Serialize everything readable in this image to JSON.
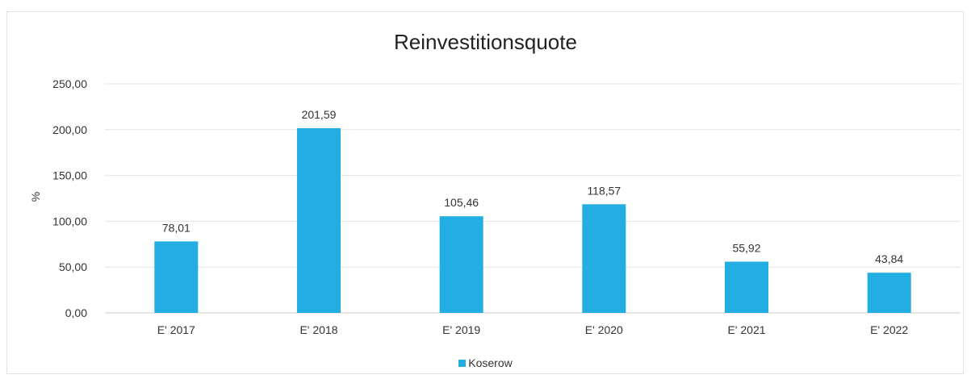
{
  "colors": {
    "bar": "#22ade3",
    "grid": "#e3e3e3",
    "axis": "#cfcfcf",
    "text": "#333333"
  },
  "chart_data": {
    "type": "bar",
    "title": "Reinvestitionsquote",
    "xlabel": "",
    "ylabel": "%",
    "categories": [
      "E' 2017",
      "E' 2018",
      "E' 2019",
      "E' 2020",
      "E' 2021",
      "E' 2022"
    ],
    "series": [
      {
        "name": "Koserow",
        "values": [
          78.01,
          201.59,
          105.46,
          118.57,
          55.92,
          43.84
        ]
      }
    ],
    "data_labels": [
      "78,01",
      "201,59",
      "105,46",
      "118,57",
      "55,92",
      "43,84"
    ],
    "yticks": [
      0,
      50,
      100,
      150,
      200,
      250
    ],
    "ytick_labels": [
      "0,00",
      "50,00",
      "100,00",
      "150,00",
      "200,00",
      "250,00"
    ],
    "ylim": [
      0,
      250
    ],
    "grid": true,
    "legend_position": "bottom"
  }
}
